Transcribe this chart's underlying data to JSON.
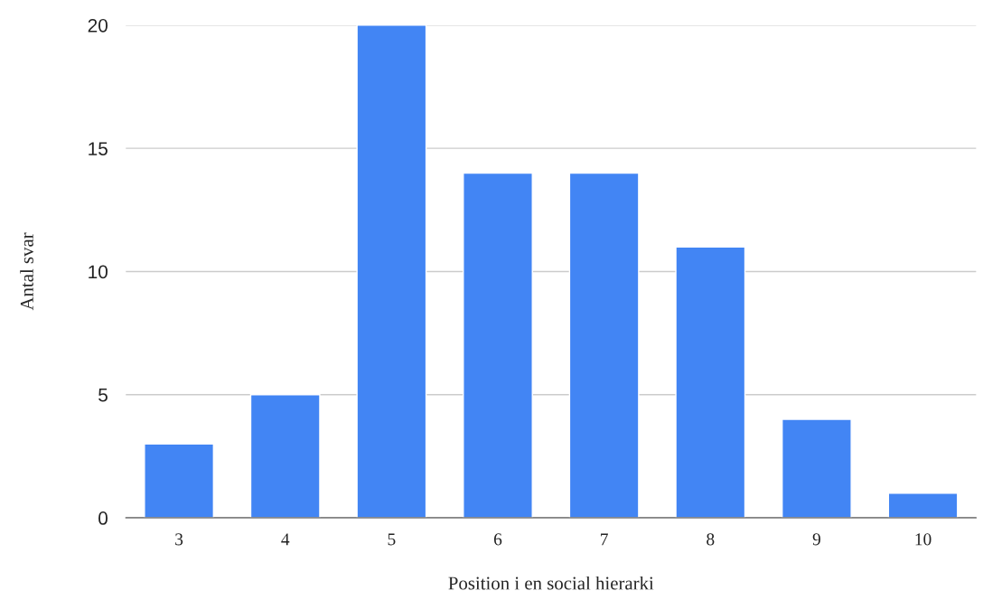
{
  "chart_data": {
    "type": "bar",
    "xlabel": "Position i en social hierarki",
    "ylabel": "Antal svar",
    "categories": [
      "3",
      "4",
      "5",
      "6",
      "7",
      "8",
      "9",
      "10"
    ],
    "values": [
      3,
      5,
      20,
      14,
      14,
      11,
      4,
      1
    ],
    "color": "#4285f4",
    "ylim": [
      0,
      20
    ],
    "yticks": [
      0,
      5,
      10,
      15,
      20
    ],
    "grid": "y"
  }
}
